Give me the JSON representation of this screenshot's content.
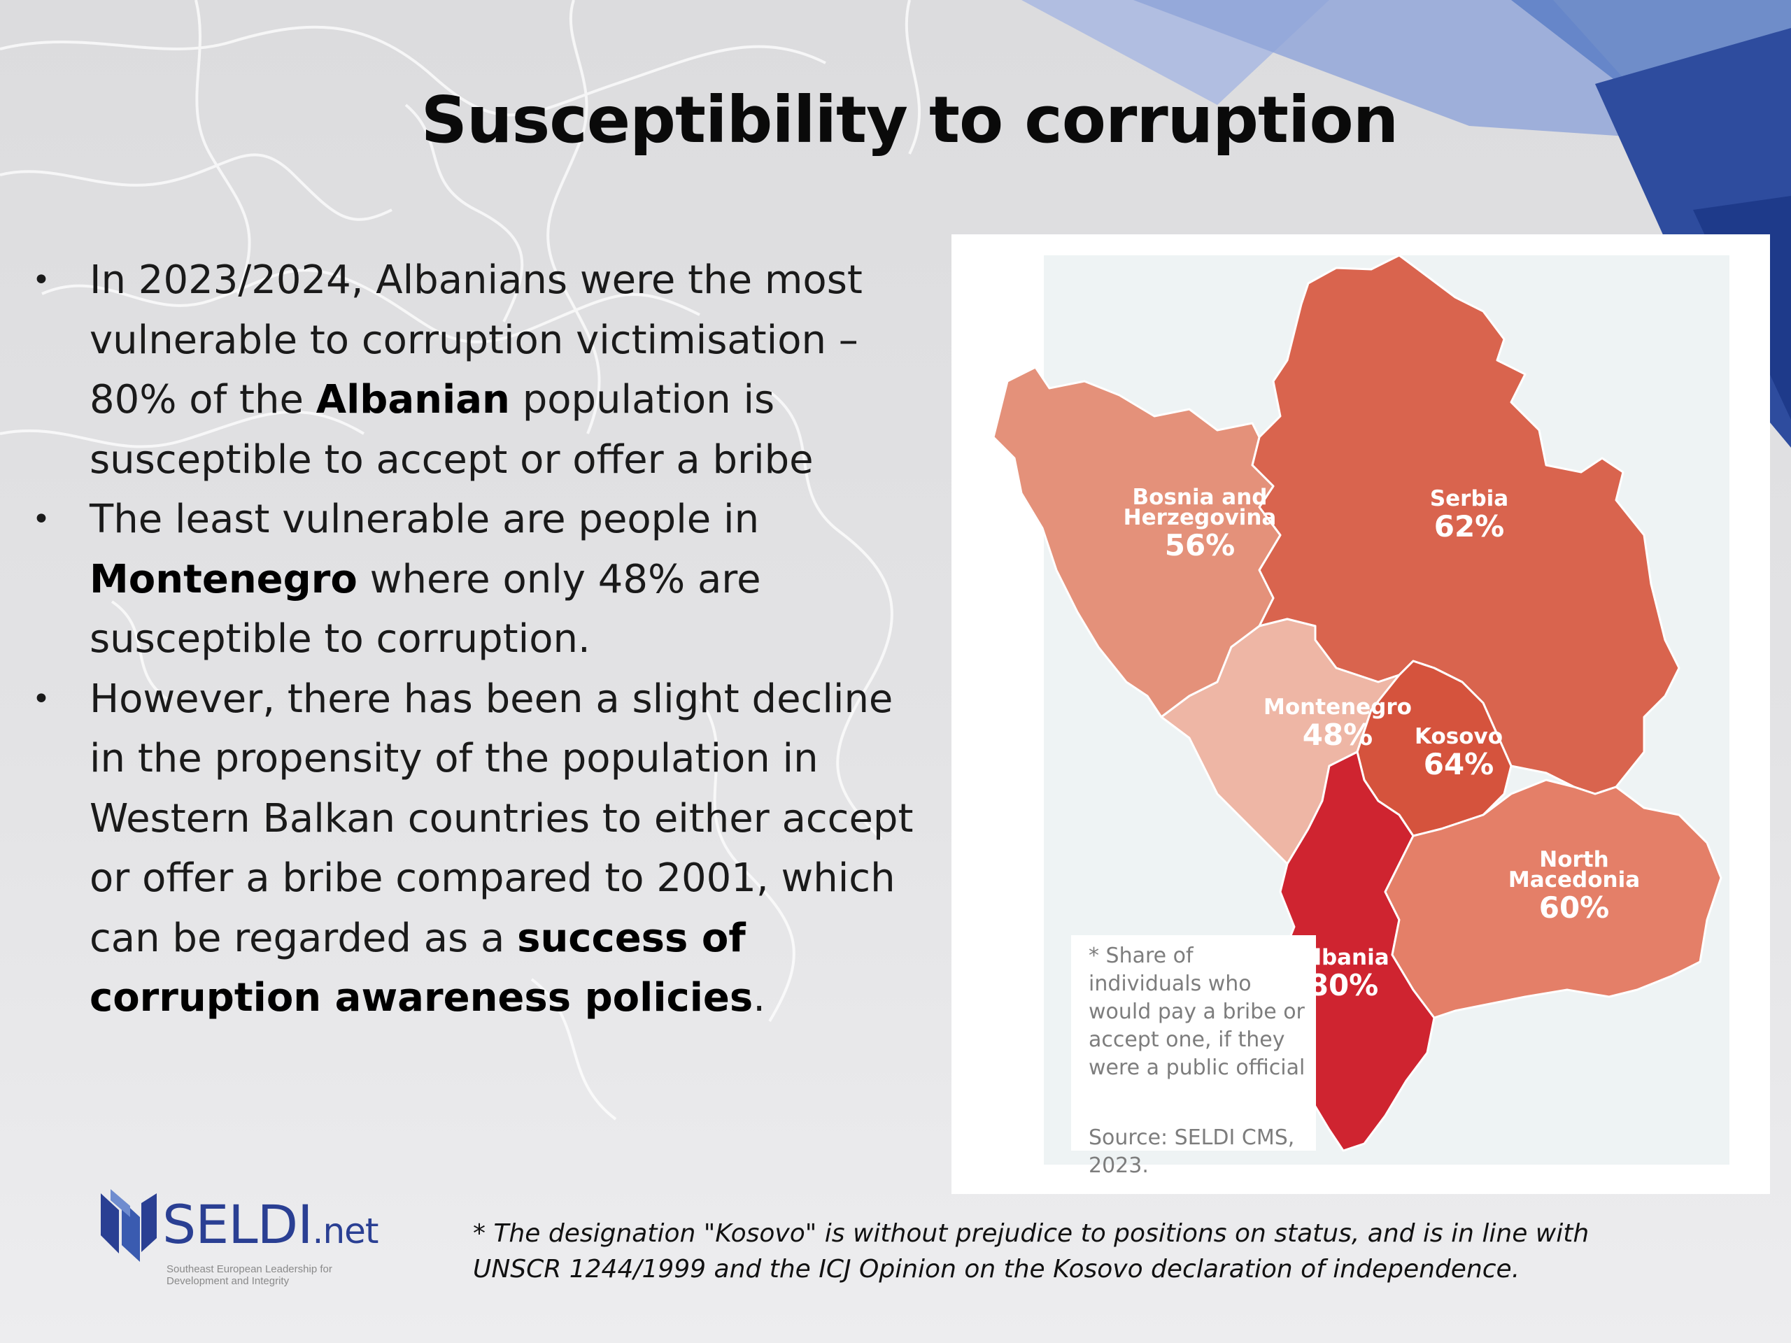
{
  "slide": {
    "title": "Susceptibility to corruption"
  },
  "bullets": [
    {
      "segments": [
        {
          "text": "In 2023/2024, Albanians were the most vulnerable to corruption victimisation – 80% of the ",
          "bold": false
        },
        {
          "text": "Albanian",
          "bold": true
        },
        {
          "text": " population is susceptible to accept or offer a bribe",
          "bold": false
        }
      ]
    },
    {
      "segments": [
        {
          "text": "The least vulnerable are people in ",
          "bold": false
        },
        {
          "text": "Montenegro",
          "bold": true
        },
        {
          "text": " where only 48% are susceptible to corruption.",
          "bold": false
        }
      ]
    },
    {
      "segments": [
        {
          "text": "However, there has been a slight decline in the propensity of the population in Western Balkan countries to either accept or offer a bribe compared to 2001, which can be regarded as a ",
          "bold": false
        },
        {
          "text": "success of corruption awareness policies",
          "bold": true
        },
        {
          "text": ".",
          "bold": false
        }
      ]
    }
  ],
  "bullet_glyph": "•",
  "map": {
    "regions": [
      {
        "id": "serbia",
        "name_lines": [
          "Serbia"
        ],
        "value": "62%",
        "color": "#d9644e"
      },
      {
        "id": "bosnia",
        "name_lines": [
          "Bosnia and",
          "Herzegovina"
        ],
        "value": "56%",
        "color": "#e4917a"
      },
      {
        "id": "montenegro",
        "name_lines": [
          "Montenegro"
        ],
        "value": "48%",
        "color": "#eeb6a5"
      },
      {
        "id": "kosovo",
        "name_lines": [
          "Kosovo"
        ],
        "value": "64%",
        "color": "#d5533d"
      },
      {
        "id": "albania",
        "name_lines": [
          "Albania"
        ],
        "value": "80%",
        "color": "#cf2430"
      },
      {
        "id": "north-macedonia",
        "name_lines": [
          "North",
          "Macedonia"
        ],
        "value": "60%",
        "color": "#e47f68"
      }
    ],
    "note": "* Share of individuals who would pay a bribe or accept one, if they were a public official",
    "source": "Source: SELDI CMS, 2023."
  },
  "logo": {
    "name": "SELDI",
    "suffix": ".net",
    "tagline": "Southeast European Leadership for Development and Integrity"
  },
  "footnote": "* The designation \"Kosovo\" is without prejudice to positions on status, and is in line with UNSCR 1244/1999 and the ICJ Opinion on the Kosovo declaration of independence."
}
